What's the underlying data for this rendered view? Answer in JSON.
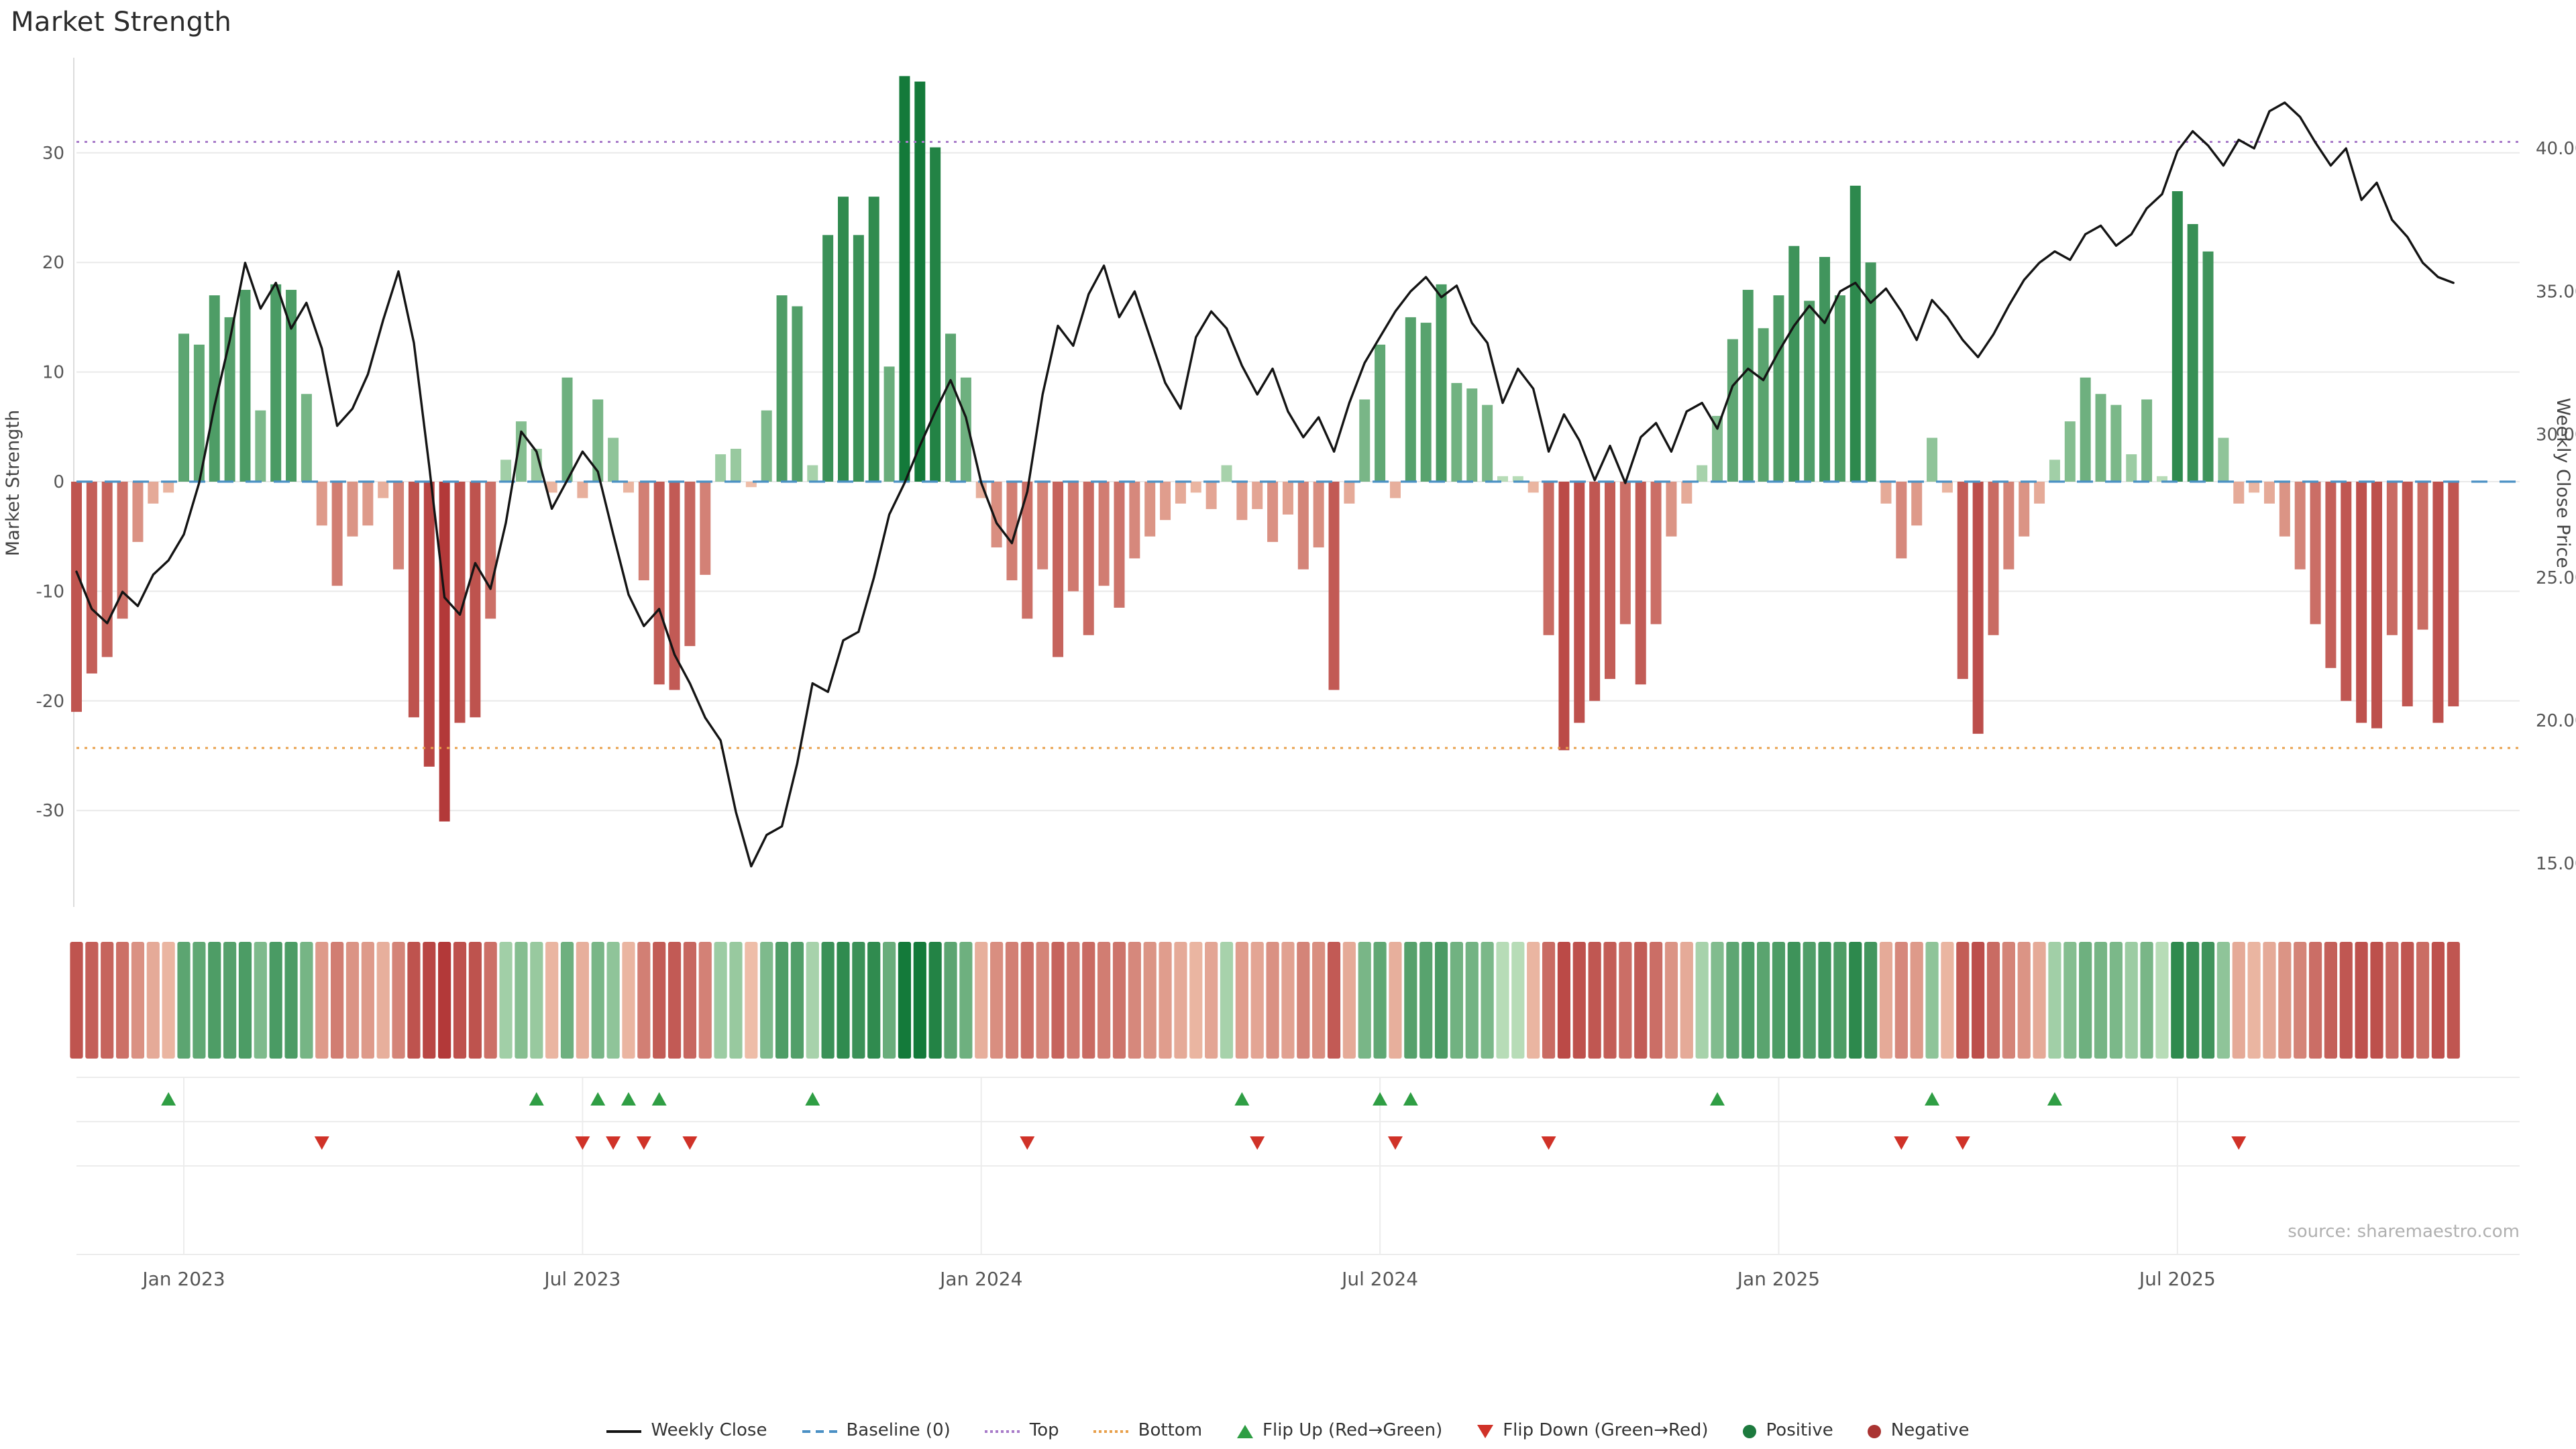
{
  "title": "Market Strength",
  "source": "source: sharemaestro.com",
  "axes": {
    "left_label": "Market Strength",
    "right_label": "Weekly Close Price",
    "left_ticks": [
      30,
      20,
      10,
      0,
      -10,
      -20,
      -30
    ],
    "right_ticks": [
      "40.00",
      "35.00",
      "30.00",
      "25.00",
      "20.00",
      "15.00"
    ],
    "x_ticks": [
      {
        "index": 7,
        "label": "Jan 2023"
      },
      {
        "index": 33,
        "label": "Jul 2023"
      },
      {
        "index": 59,
        "label": "Jan 2024"
      },
      {
        "index": 85,
        "label": "Jul 2024"
      },
      {
        "index": 111,
        "label": "Jan 2025"
      },
      {
        "index": 137,
        "label": "Jul 2025"
      }
    ]
  },
  "colors": {
    "line": "#141414",
    "baseline": "#4a90c4",
    "top_line": "#a87bc9",
    "bottom_line": "#e8a04c",
    "flip_up": "#2f9e44",
    "flip_down": "#d03228",
    "positive_dark": "#147a3a",
    "positive_light": "#cde9c8",
    "negative_dark": "#b23737",
    "negative_light": "#f6d0b8"
  },
  "legend": {
    "items": [
      {
        "key": "weekly-close",
        "label": "Weekly Close",
        "swatch": "line",
        "color": "#141414"
      },
      {
        "key": "baseline",
        "label": "Baseline (0)",
        "swatch": "dash",
        "color": "#4a90c4"
      },
      {
        "key": "top",
        "label": "Top",
        "swatch": "dots",
        "color": "#a87bc9"
      },
      {
        "key": "bottom",
        "label": "Bottom",
        "swatch": "dots",
        "color": "#e8a04c"
      },
      {
        "key": "flip-up",
        "label": "Flip Up (Red→Green)",
        "swatch": "triangle-up",
        "color": "#2f9e44"
      },
      {
        "key": "flip-down",
        "label": "Flip Down (Green→Red)",
        "swatch": "triangle-down",
        "color": "#d03228"
      },
      {
        "key": "positive",
        "label": "Positive",
        "swatch": "circle",
        "color": "#1d7a3e"
      },
      {
        "key": "negative",
        "label": "Negative",
        "swatch": "circle",
        "color": "#aa3432"
      }
    ]
  },
  "chart_data": {
    "type": "bar",
    "title": "Market Strength",
    "x_unit": "week",
    "grid": true,
    "legend_position": "bottom",
    "left_axis": {
      "label": "Market Strength",
      "range": [
        -38.8,
        38.7
      ],
      "ticks": [
        30,
        20,
        10,
        0,
        -10,
        -20,
        -30
      ]
    },
    "right_axis": {
      "label": "Weekly Close Price",
      "range": [
        13.5,
        43.2
      ],
      "ticks": [
        40,
        35,
        30,
        25,
        20,
        15
      ]
    },
    "reference_lines": {
      "baseline": 0,
      "top": 31,
      "bottom": -24.3
    },
    "x_ticks": [
      {
        "index": 7,
        "label": "Jan 2023"
      },
      {
        "index": 33,
        "label": "Jul 2023"
      },
      {
        "index": 59,
        "label": "Jan 2024"
      },
      {
        "index": 85,
        "label": "Jul 2024"
      },
      {
        "index": 111,
        "label": "Jan 2025"
      },
      {
        "index": 137,
        "label": "Jul 2025"
      }
    ],
    "series": [
      {
        "name": "Market Strength",
        "type": "bar",
        "axis": "left",
        "values": [
          -21,
          -17.5,
          -16,
          -12.5,
          -5.5,
          -2,
          -1,
          13.5,
          12.5,
          17,
          15,
          17.5,
          6.5,
          18,
          17.5,
          8,
          -4,
          -9.5,
          -5,
          -4,
          -1.5,
          -8,
          -21.5,
          -26,
          -31,
          -22,
          -21.5,
          -12.5,
          2,
          5.5,
          3,
          -1,
          9.5,
          -1.5,
          7.5,
          4,
          -1,
          -9,
          -18.5,
          -19,
          -15,
          -8.5,
          2.5,
          3,
          -0.5,
          6.5,
          17,
          16,
          1.5,
          22.5,
          26,
          22.5,
          26,
          10.5,
          37,
          36.5,
          30.5,
          13.5,
          9.5,
          -1.5,
          -6,
          -9,
          -12.5,
          -8,
          -16,
          -10,
          -14,
          -9.5,
          -11.5,
          -7,
          -5,
          -3.5,
          -2,
          -1,
          -2.5,
          1.5,
          -3.5,
          -2.5,
          -5.5,
          -3,
          -8,
          -6,
          -19,
          -2,
          7.5,
          12.5,
          -1.5,
          15,
          14.5,
          18,
          9,
          8.5,
          7,
          0.5,
          0.5,
          -1,
          -14,
          -24.5,
          -22,
          -20,
          -18,
          -13,
          -18.5,
          -13,
          -5,
          -2,
          1.5,
          6,
          13,
          17.5,
          14,
          17,
          21.5,
          16.5,
          20.5,
          17,
          27,
          20,
          -2,
          -7,
          -4,
          4,
          -1,
          -18,
          -23,
          -14,
          -8,
          -5,
          -2,
          2,
          5.5,
          9.5,
          8,
          7,
          2.5,
          7.5,
          0.5,
          26.5,
          23.5,
          21,
          4,
          -2,
          -1,
          -2,
          -5,
          -8,
          -13,
          -17,
          -20,
          -22,
          -22.5,
          -14,
          -20.5,
          -13.5,
          -22,
          -20.5
        ]
      },
      {
        "name": "Weekly Close",
        "type": "line",
        "axis": "right",
        "values": [
          25.2,
          23.9,
          23.4,
          24.5,
          24.0,
          25.1,
          25.6,
          26.5,
          28.3,
          31.0,
          33.3,
          36.0,
          34.4,
          35.3,
          33.7,
          34.6,
          33.0,
          30.3,
          30.9,
          32.1,
          34.0,
          35.7,
          33.2,
          28.9,
          24.3,
          23.7,
          25.5,
          24.6,
          26.9,
          30.1,
          29.4,
          27.4,
          28.4,
          29.4,
          28.7,
          26.5,
          24.4,
          23.3,
          23.9,
          22.3,
          21.3,
          20.1,
          19.3,
          16.8,
          14.9,
          16.0,
          16.3,
          18.5,
          21.3,
          21.0,
          22.8,
          23.1,
          25.0,
          27.2,
          28.3,
          29.6,
          30.8,
          31.9,
          30.6,
          28.3,
          26.9,
          26.2,
          28.0,
          31.4,
          33.8,
          33.1,
          34.9,
          35.9,
          34.1,
          35.0,
          33.4,
          31.8,
          30.9,
          33.4,
          34.3,
          33.7,
          32.4,
          31.4,
          32.3,
          30.8,
          29.9,
          30.6,
          29.4,
          31.1,
          32.5,
          33.4,
          34.3,
          35.0,
          35.5,
          34.8,
          35.2,
          33.9,
          33.2,
          31.1,
          32.3,
          31.6,
          29.4,
          30.7,
          29.8,
          28.4,
          29.6,
          28.3,
          29.9,
          30.4,
          29.4,
          30.8,
          31.1,
          30.2,
          31.7,
          32.3,
          31.9,
          32.9,
          33.8,
          34.5,
          33.9,
          35.0,
          35.3,
          34.6,
          35.1,
          34.3,
          33.3,
          34.7,
          34.1,
          33.3,
          32.7,
          33.5,
          34.5,
          35.4,
          36.0,
          36.4,
          36.1,
          37.0,
          37.3,
          36.6,
          37.0,
          37.9,
          38.4,
          39.9,
          40.6,
          40.1,
          39.4,
          40.3,
          40.0,
          41.3,
          41.6,
          41.1,
          40.2,
          39.4,
          40.0,
          38.2,
          38.8,
          37.5,
          36.9,
          36.0,
          35.5,
          35.3
        ]
      }
    ],
    "heatmap_source": "Market Strength",
    "flip_up_weeks": [
      6,
      30,
      34,
      36,
      38,
      48,
      76,
      85,
      87,
      107,
      121,
      129
    ],
    "flip_down_weeks": [
      16,
      33,
      35,
      37,
      40,
      62,
      77,
      86,
      96,
      119,
      123,
      141
    ]
  }
}
